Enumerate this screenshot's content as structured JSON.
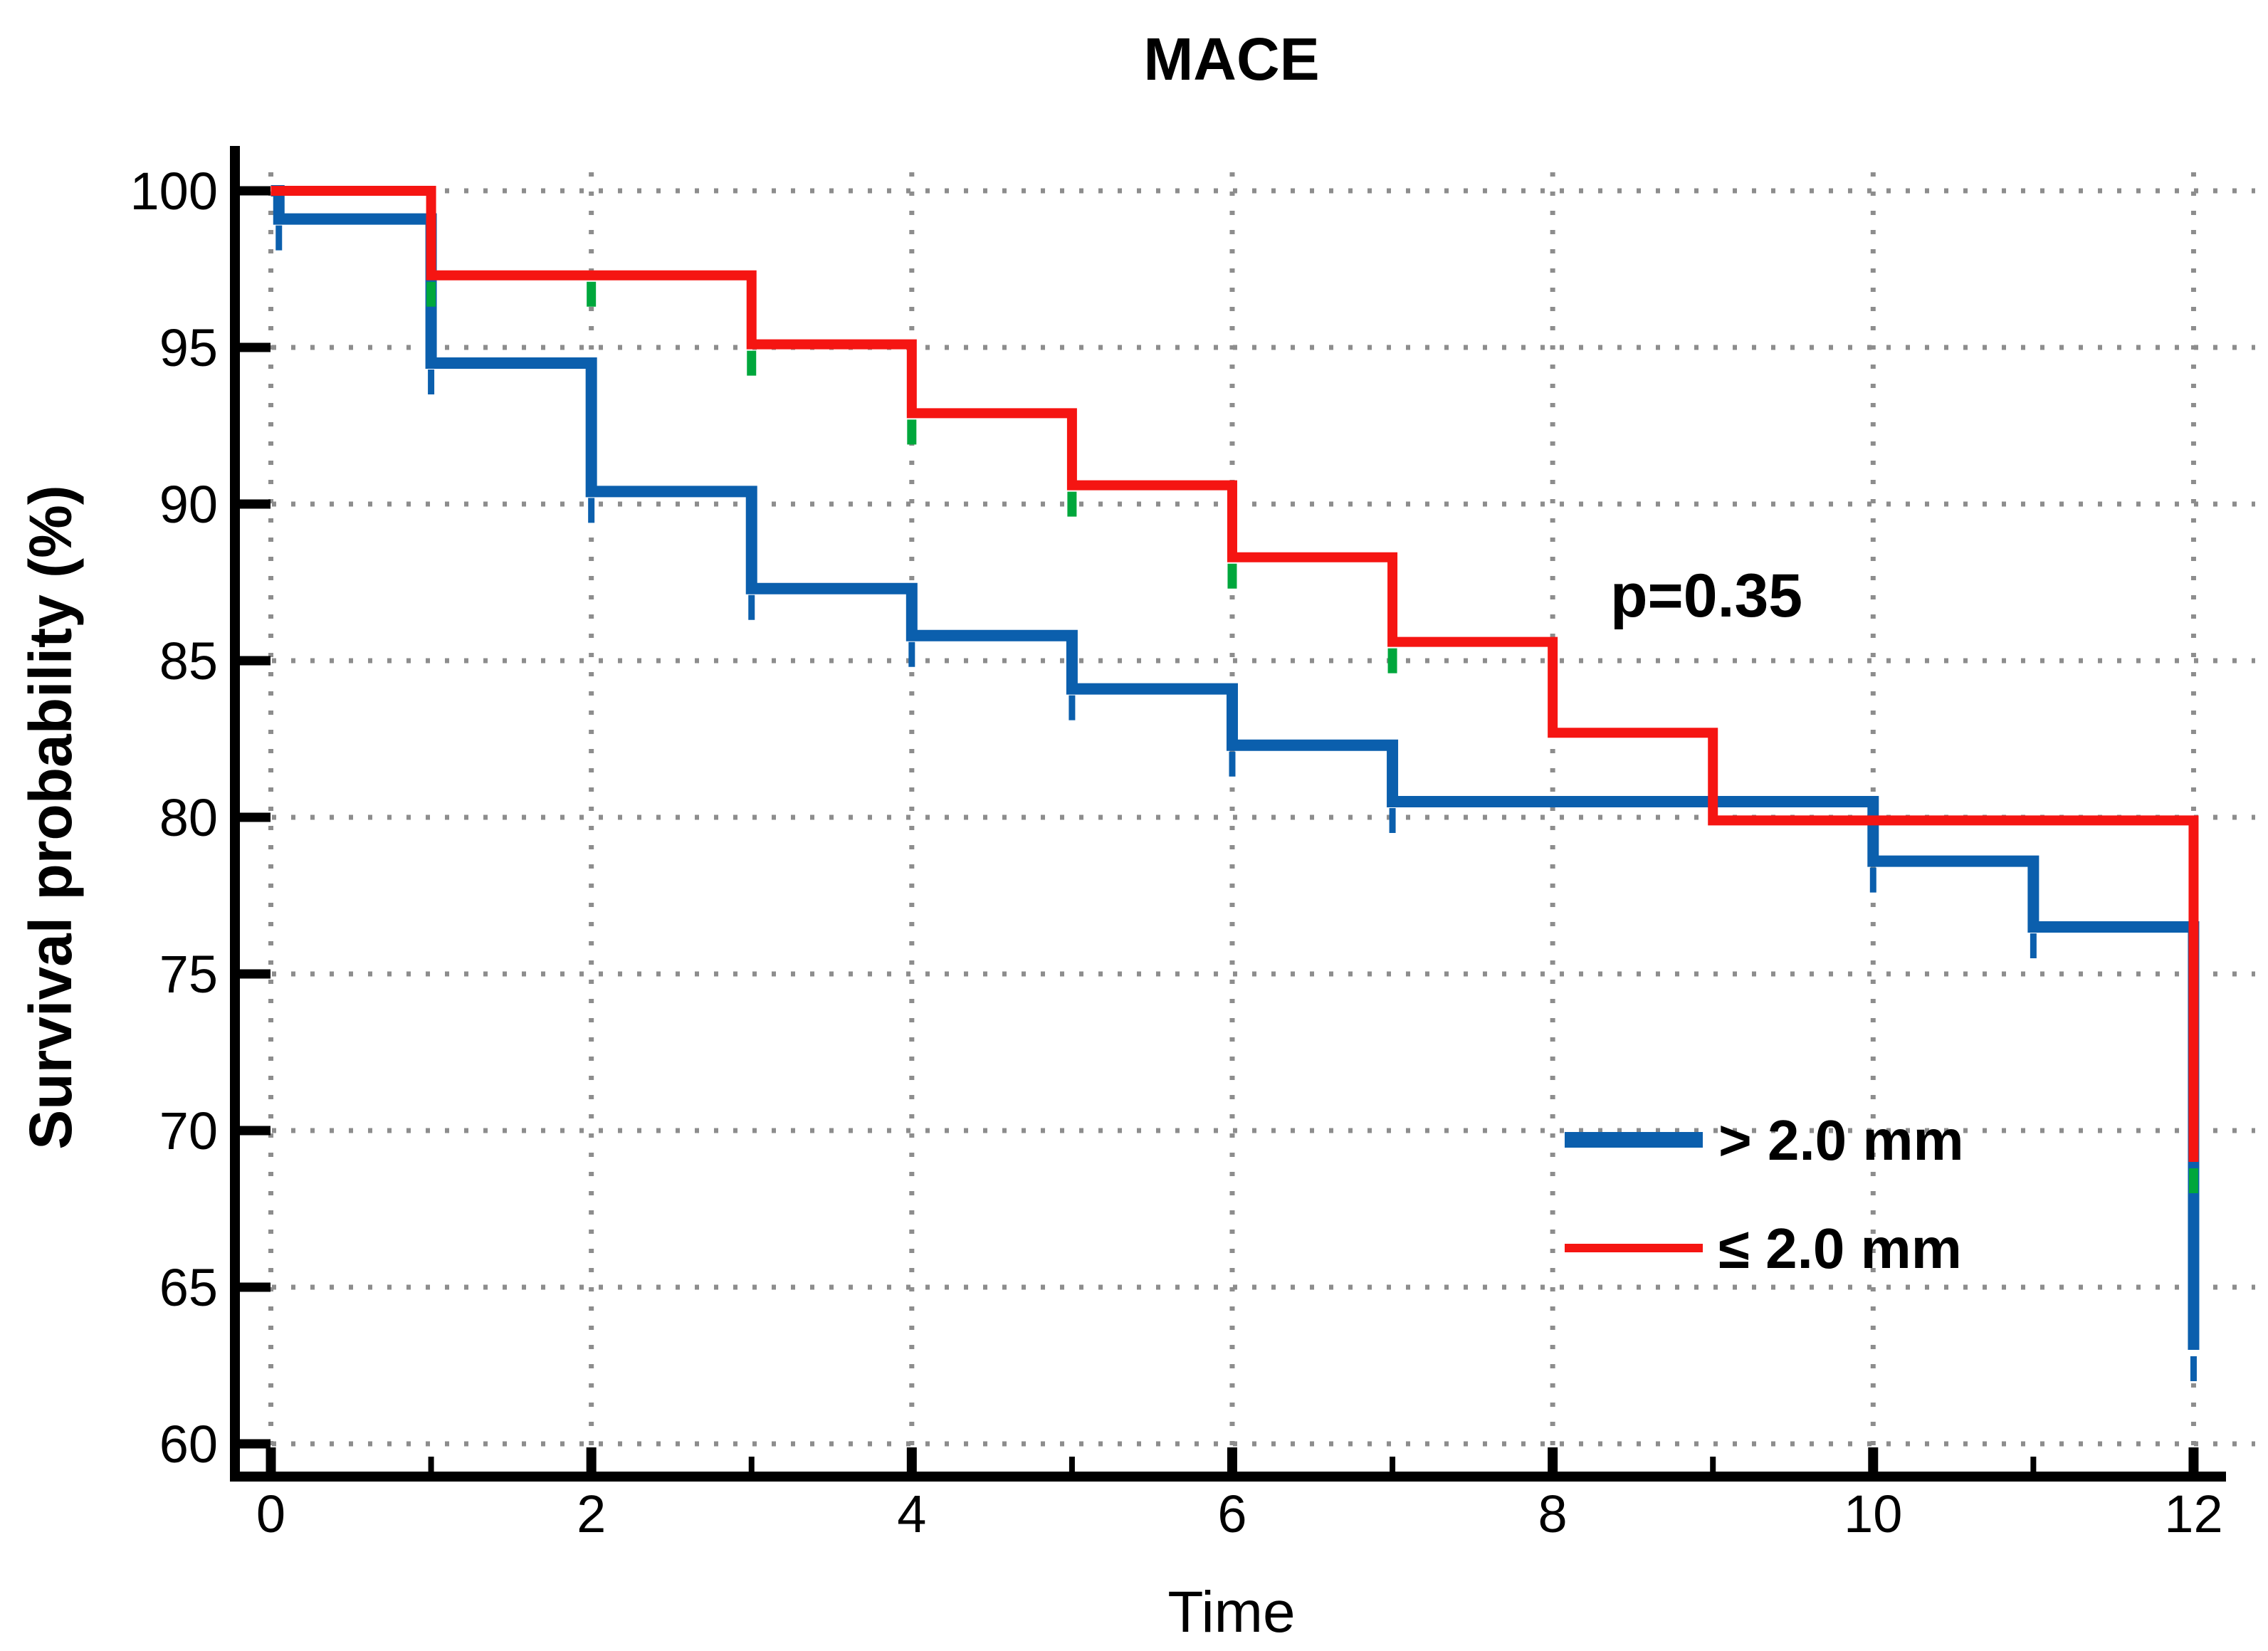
{
  "title": "MACE",
  "annotation": {
    "p_value_label": "p=0.35"
  },
  "legend": {
    "position": "right-center",
    "items": [
      {
        "label": "> 2.0 mm",
        "color": "#0b5fad",
        "swatch_thickness": 22
      },
      {
        "label": "≤ 2.0 mm",
        "color": "#f51512",
        "swatch_thickness": 12
      }
    ]
  },
  "chart_data": {
    "type": "line",
    "subtype": "kaplan-meier-step",
    "title": "MACE",
    "xlabel": "Time",
    "ylabel": "Survival probability (%)",
    "xlim": [
      0,
      12
    ],
    "ylim": [
      60,
      100
    ],
    "grid": {
      "horizontal": true,
      "vertical": true,
      "style": "dotted",
      "color": "#8d8d8d"
    },
    "xticks_major": [
      0,
      2,
      4,
      6,
      8,
      10,
      12
    ],
    "xticks_minor": [
      1,
      3,
      5,
      7,
      9,
      11
    ],
    "yticks": [
      60,
      65,
      70,
      75,
      80,
      85,
      90,
      95,
      100
    ],
    "axis_color": "#000000",
    "series": [
      {
        "name": "> 2.0 mm",
        "color": "#0b5fad",
        "stroke_width": 16,
        "step_points": [
          [
            0,
            100
          ],
          [
            0.05,
            99.1
          ],
          [
            1,
            94.5
          ],
          [
            2,
            90.4
          ],
          [
            3,
            87.3
          ],
          [
            4,
            85.8
          ],
          [
            5,
            84.1
          ],
          [
            6,
            82.3
          ],
          [
            7,
            80.5
          ],
          [
            10,
            78.6
          ],
          [
            11,
            76.5
          ],
          [
            12,
            63.0
          ]
        ],
        "censor_marks": [
          [
            0.05,
            99.1
          ],
          [
            1,
            94.5
          ],
          [
            2,
            90.4
          ],
          [
            3,
            87.3
          ],
          [
            4,
            85.8
          ],
          [
            5,
            84.1
          ],
          [
            6,
            82.3
          ],
          [
            7,
            80.5
          ],
          [
            10,
            78.6
          ],
          [
            11,
            76.5
          ],
          [
            12,
            63.0
          ]
        ],
        "censor_color": "#0b5fad"
      },
      {
        "name": "≤ 2.0 mm",
        "color": "#f51512",
        "stroke_width": 14,
        "step_points": [
          [
            0,
            100
          ],
          [
            1,
            97.3
          ],
          [
            3,
            95.1
          ],
          [
            4,
            92.9
          ],
          [
            5,
            90.6
          ],
          [
            6,
            88.3
          ],
          [
            7,
            85.6
          ],
          [
            8,
            82.7
          ],
          [
            9,
            79.9
          ],
          [
            12,
            69.0
          ]
        ],
        "censor_marks": [
          [
            1,
            97.3
          ],
          [
            2,
            97.3
          ],
          [
            3,
            95.1
          ],
          [
            4,
            92.9
          ],
          [
            5,
            90.6
          ],
          [
            6,
            88.3
          ],
          [
            7,
            85.6
          ],
          [
            12,
            69.0
          ]
        ],
        "censor_color": "#00a73c"
      }
    ]
  }
}
